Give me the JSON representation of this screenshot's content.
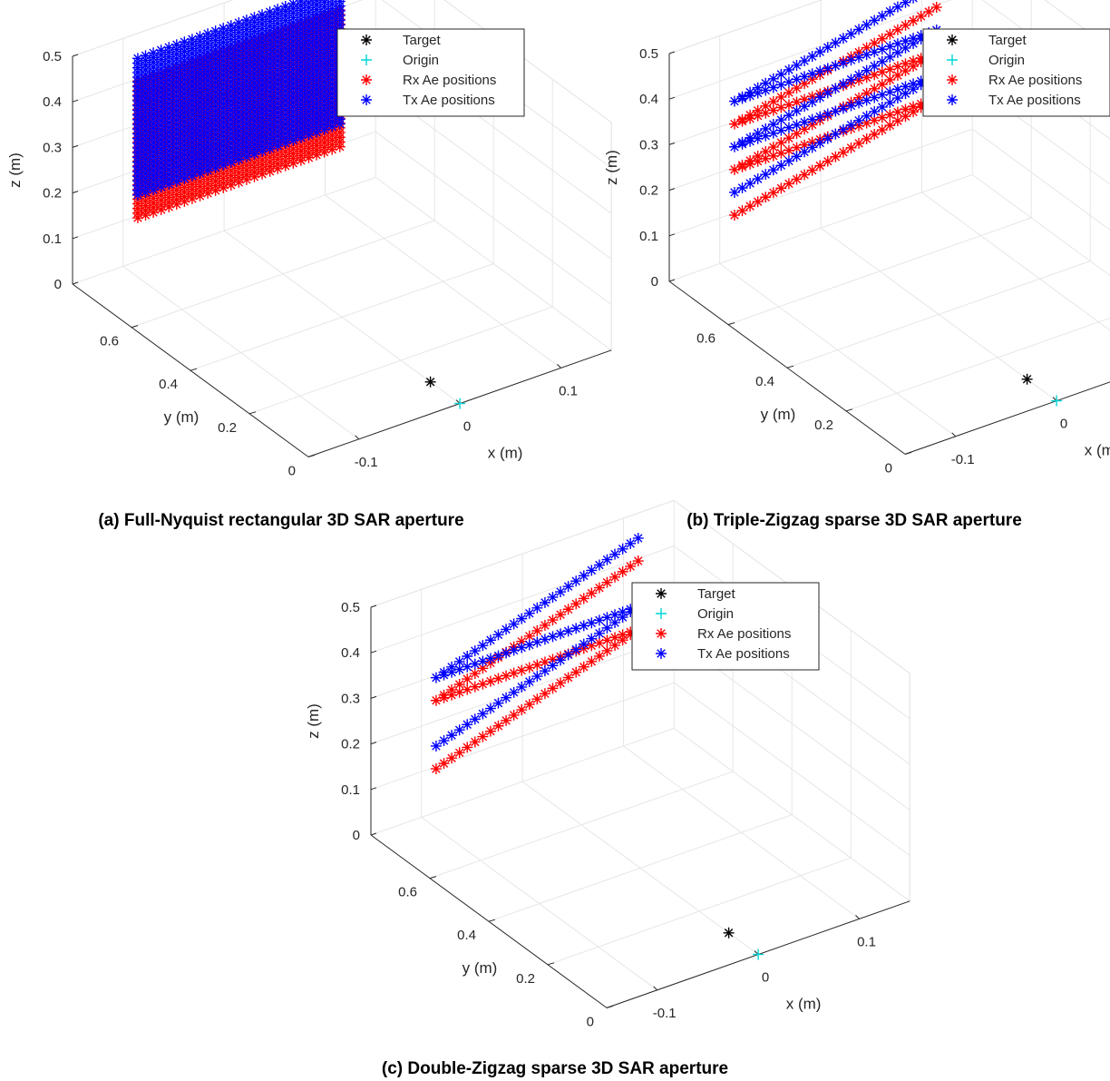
{
  "figure": {
    "captions": [
      "(a) Full-Nyquist rectangular 3D SAR aperture",
      "(b) Triple-Zigzag sparse 3D SAR aperture",
      "(c) Double-Zigzag sparse 3D SAR aperture"
    ]
  },
  "colors": {
    "target": "#000000",
    "origin": "#00d5d5",
    "rx": "#ff0000",
    "tx": "#0000ff",
    "grid": "#e6e6e6",
    "axis": "#262626"
  },
  "chart_data": [
    {
      "id": "a",
      "type": "scatter",
      "projection": "3d",
      "xlabel": "x (m)",
      "ylabel": "y (m)",
      "zlabel": "z (m)",
      "xticks": [
        "-0.1",
        "0",
        "0.1"
      ],
      "yticks": [
        "0",
        "0.2",
        "0.4",
        "0.6"
      ],
      "zticks": [
        "0",
        "0.1",
        "0.2",
        "0.3",
        "0.4",
        "0.5"
      ],
      "xlim": [
        -0.15,
        0.15
      ],
      "ylim": [
        0,
        0.8
      ],
      "zlim": [
        0,
        0.5
      ],
      "grid": true,
      "legend": {
        "position": "top-right",
        "entries": [
          "Target",
          "Origin",
          "Rx Ae positions",
          "Tx Ae positions"
        ]
      },
      "aperture": {
        "pattern": "full",
        "x_range": [
          -0.1,
          0.1
        ],
        "y": 0.75,
        "rx": {
          "z_range": [
            0.13,
            0.43
          ],
          "rows": 30
        },
        "tx": {
          "z_range": [
            0.18,
            0.48
          ],
          "rows": 30
        }
      },
      "target": {
        "x": 0,
        "y": 0.1,
        "z": 0
      },
      "origin": {
        "x": 0,
        "y": 0,
        "z": 0
      }
    },
    {
      "id": "b",
      "type": "scatter",
      "projection": "3d",
      "xlabel": "x (m)",
      "ylabel": "y (m)",
      "zlabel": "z (m)",
      "xticks": [
        "-0.1",
        "0",
        "0.1"
      ],
      "yticks": [
        "0",
        "0.2",
        "0.4",
        "0.6"
      ],
      "zticks": [
        "0",
        "0.1",
        "0.2",
        "0.3",
        "0.4",
        "0.5"
      ],
      "xlim": [
        -0.15,
        0.15
      ],
      "ylim": [
        0,
        0.8
      ],
      "zlim": [
        0,
        0.5
      ],
      "grid": true,
      "legend": {
        "position": "top-right",
        "entries": [
          "Target",
          "Origin",
          "Rx Ae positions",
          "Tx Ae positions"
        ]
      },
      "aperture": {
        "pattern": "zigzag",
        "x_range": [
          -0.1,
          0.1
        ],
        "y": 0.75,
        "rx": {
          "z_points": [
            0.13,
            0.23,
            0.23,
            0.33,
            0.33,
            0.43
          ]
        },
        "tx": {
          "z_points": [
            0.18,
            0.28,
            0.28,
            0.38,
            0.38,
            0.48
          ]
        }
      },
      "target": {
        "x": 0,
        "y": 0.1,
        "z": 0
      },
      "origin": {
        "x": 0,
        "y": 0,
        "z": 0
      }
    },
    {
      "id": "c",
      "type": "scatter",
      "projection": "3d",
      "xlabel": "x (m)",
      "ylabel": "y (m)",
      "zlabel": "z (m)",
      "xticks": [
        "-0.1",
        "0",
        "0.1"
      ],
      "yticks": [
        "0",
        "0.2",
        "0.4",
        "0.6"
      ],
      "zticks": [
        "0",
        "0.1",
        "0.2",
        "0.3",
        "0.4",
        "0.5"
      ],
      "xlim": [
        -0.15,
        0.15
      ],
      "ylim": [
        0,
        0.8
      ],
      "zlim": [
        0,
        0.5
      ],
      "grid": true,
      "legend": {
        "position": "top-right",
        "entries": [
          "Target",
          "Origin",
          "Rx Ae positions",
          "Tx Ae positions"
        ]
      },
      "aperture": {
        "pattern": "zigzag",
        "x_range": [
          -0.1,
          0.1
        ],
        "y": 0.75,
        "rx": {
          "z_points": [
            0.13,
            0.28,
            0.28,
            0.43
          ]
        },
        "tx": {
          "z_points": [
            0.18,
            0.33,
            0.33,
            0.48
          ]
        }
      },
      "target": {
        "x": 0,
        "y": 0.1,
        "z": 0
      },
      "origin": {
        "x": 0,
        "y": 0,
        "z": 0
      }
    }
  ]
}
